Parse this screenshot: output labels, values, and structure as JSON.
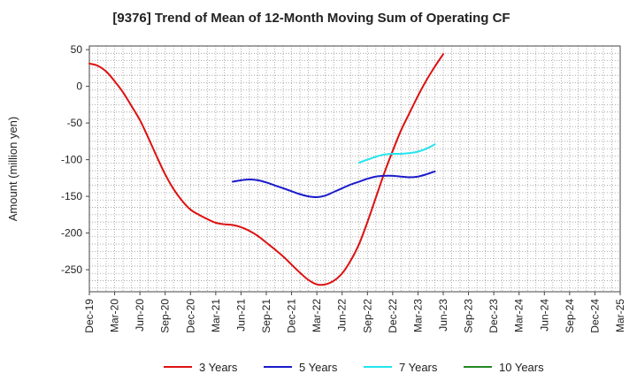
{
  "chart_data": {
    "type": "line",
    "title": "[9376]  Trend of Mean of 12-Month Moving Sum of Operating CF",
    "xlabel": "",
    "ylabel": "Amount (million yen)",
    "ylim": [
      -280,
      55
    ],
    "yticks": [
      50,
      0,
      -50,
      -100,
      -150,
      -200,
      -250
    ],
    "grid": true,
    "legend_position": "bottom",
    "categories": [
      "Dec-19",
      "Mar-20",
      "Jun-20",
      "Sep-20",
      "Dec-20",
      "Mar-21",
      "Jun-21",
      "Sep-21",
      "Dec-21",
      "Mar-22",
      "Jun-22",
      "Sep-22",
      "Dec-22",
      "Mar-23",
      "Jun-23",
      "Sep-23",
      "Dec-23",
      "Mar-24",
      "Jun-24",
      "Sep-24",
      "Dec-24",
      "Mar-25"
    ],
    "series": [
      {
        "name": "3 Years",
        "color": "#dd1111",
        "points": [
          [
            0,
            31
          ],
          [
            0.33,
            28
          ],
          [
            0.67,
            20
          ],
          [
            1,
            7
          ],
          [
            1.33,
            -8
          ],
          [
            1.67,
            -27
          ],
          [
            2,
            -46
          ],
          [
            2.33,
            -70
          ],
          [
            2.67,
            -96
          ],
          [
            3,
            -120
          ],
          [
            3.33,
            -140
          ],
          [
            3.67,
            -156
          ],
          [
            4,
            -168
          ],
          [
            4.33,
            -175
          ],
          [
            4.67,
            -181
          ],
          [
            5,
            -186
          ],
          [
            5.33,
            -188
          ],
          [
            5.67,
            -189
          ],
          [
            6,
            -192
          ],
          [
            6.33,
            -197
          ],
          [
            6.67,
            -204
          ],
          [
            7,
            -213
          ],
          [
            7.33,
            -222
          ],
          [
            7.67,
            -232
          ],
          [
            8,
            -243
          ],
          [
            8.33,
            -254
          ],
          [
            8.67,
            -264
          ],
          [
            9,
            -270
          ],
          [
            9.33,
            -270
          ],
          [
            9.67,
            -265
          ],
          [
            10,
            -255
          ],
          [
            10.33,
            -238
          ],
          [
            10.67,
            -215
          ],
          [
            11,
            -185
          ],
          [
            11.33,
            -152
          ],
          [
            11.67,
            -118
          ],
          [
            12,
            -88
          ],
          [
            12.33,
            -60
          ],
          [
            12.67,
            -36
          ],
          [
            13,
            -13
          ],
          [
            13.33,
            8
          ],
          [
            13.67,
            27
          ],
          [
            14,
            44
          ]
        ]
      },
      {
        "name": "5 Years",
        "color": "#1a1acc",
        "points": [
          [
            5.67,
            -130
          ],
          [
            6,
            -128
          ],
          [
            6.33,
            -127
          ],
          [
            6.67,
            -128
          ],
          [
            7,
            -131
          ],
          [
            7.33,
            -135
          ],
          [
            7.67,
            -139
          ],
          [
            8,
            -143
          ],
          [
            8.33,
            -147
          ],
          [
            8.67,
            -150
          ],
          [
            9,
            -151
          ],
          [
            9.33,
            -149
          ],
          [
            9.67,
            -144
          ],
          [
            10,
            -139
          ],
          [
            10.33,
            -134
          ],
          [
            10.67,
            -130
          ],
          [
            11,
            -126
          ],
          [
            11.33,
            -123
          ],
          [
            11.67,
            -122
          ],
          [
            12,
            -122
          ],
          [
            12.33,
            -123
          ],
          [
            12.67,
            -124
          ],
          [
            13,
            -123
          ],
          [
            13.33,
            -120
          ],
          [
            13.67,
            -116
          ]
        ]
      },
      {
        "name": "7 Years",
        "color": "#22e5ee",
        "points": [
          [
            10.67,
            -104
          ],
          [
            11,
            -100
          ],
          [
            11.33,
            -96
          ],
          [
            11.67,
            -93
          ],
          [
            12,
            -92
          ],
          [
            12.33,
            -92
          ],
          [
            12.67,
            -91
          ],
          [
            13,
            -89
          ],
          [
            13.33,
            -85
          ],
          [
            13.67,
            -79
          ]
        ]
      },
      {
        "name": "10 Years",
        "color": "#228822",
        "points": []
      }
    ]
  }
}
